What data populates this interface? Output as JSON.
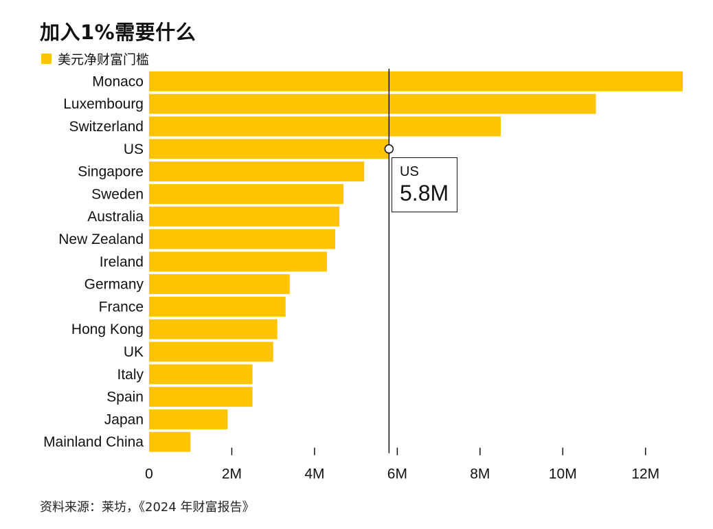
{
  "title": "加入1%需要什么",
  "legend": {
    "label": "美元净财富门槛",
    "color": "#FFC400"
  },
  "source": "资料来源：莱坊，《2024 年财富报告》",
  "tooltip": {
    "category": "US",
    "value_label": "5.8M",
    "value": 5.8
  },
  "chart_data": {
    "type": "bar",
    "orientation": "horizontal",
    "categories": [
      "Monaco",
      "Luxembourg",
      "Switzerland",
      "US",
      "Singapore",
      "Sweden",
      "Australia",
      "New Zealand",
      "Ireland",
      "Germany",
      "France",
      "Hong Kong",
      "UK",
      "Italy",
      "Spain",
      "Japan",
      "Mainland China"
    ],
    "values": [
      12.9,
      10.8,
      8.5,
      5.8,
      5.2,
      4.7,
      4.6,
      4.5,
      4.3,
      3.4,
      3.3,
      3.1,
      3.0,
      2.5,
      2.5,
      1.9,
      1.0
    ],
    "series": [
      {
        "name": "美元净财富门槛",
        "values": [
          12.9,
          10.8,
          8.5,
          5.8,
          5.2,
          4.7,
          4.6,
          4.5,
          4.3,
          3.4,
          3.3,
          3.1,
          3.0,
          2.5,
          2.5,
          1.9,
          1.0
        ]
      }
    ],
    "xlim": [
      0,
      13
    ],
    "ticks": [
      0,
      2,
      4,
      6,
      8,
      10,
      12
    ],
    "tick_labels": [
      "0",
      "2M",
      "4M",
      "6M",
      "8M",
      "10M",
      "12M"
    ],
    "highlight": {
      "category": "US",
      "value": 5.8
    },
    "grid": false,
    "legend_position": "top-left",
    "bar_color": "#FFC400"
  }
}
